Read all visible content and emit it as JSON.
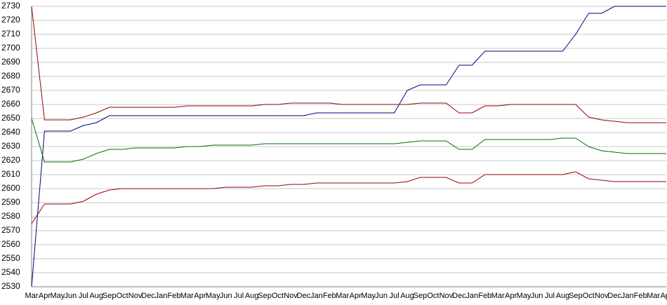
{
  "chart_data": {
    "type": "line",
    "categories": [
      "Mar",
      "Apr",
      "May",
      "Jun",
      "Jul",
      "Aug",
      "Sep",
      "Oct",
      "Nov",
      "Dec",
      "Jan",
      "Feb",
      "Mar",
      "Apr",
      "May",
      "Jun",
      "Jul",
      "Aug",
      "Sep",
      "Oct",
      "Nov",
      "Dec",
      "Jan",
      "Feb",
      "Mar",
      "Apr",
      "May",
      "Jun",
      "Jul",
      "Aug",
      "Sep",
      "Oct",
      "Nov",
      "Dec",
      "Jan",
      "Feb",
      "Mar",
      "Apr",
      "May",
      "Jun",
      "Jul",
      "Aug",
      "Sep",
      "Oct",
      "Nov",
      "Dec",
      "Jan",
      "Feb",
      "Mar",
      "Apr"
    ],
    "series": [
      {
        "color": "#000080",
        "values": [
          2530,
          2641,
          2641,
          2641,
          2645,
          2647,
          2652,
          2652,
          2652,
          2652,
          2652,
          2652,
          2652,
          2652,
          2652,
          2652,
          2652,
          2652,
          2652,
          2652,
          2652,
          2652,
          2654,
          2654,
          2654,
          2654,
          2654,
          2654,
          2654,
          2670,
          2674,
          2674,
          2674,
          2688,
          2688,
          2698,
          2698,
          2698,
          2698,
          2698,
          2698,
          2698,
          2710,
          2725,
          2725,
          2730,
          2730,
          2730,
          2730,
          2730
        ]
      },
      {
        "color": "#990000",
        "values": [
          2730,
          2649,
          2649,
          2649,
          2651,
          2654,
          2658,
          2658,
          2658,
          2658,
          2658,
          2658,
          2659,
          2659,
          2659,
          2659,
          2659,
          2659,
          2660,
          2660,
          2661,
          2661,
          2661,
          2661,
          2660,
          2660,
          2660,
          2660,
          2660,
          2660,
          2661,
          2661,
          2661,
          2654,
          2654,
          2659,
          2659,
          2660,
          2660,
          2660,
          2660,
          2660,
          2660,
          2651,
          2649,
          2648,
          2647,
          2647,
          2647,
          2647
        ]
      },
      {
        "color": "#007000",
        "values": [
          2650,
          2619,
          2619,
          2619,
          2621,
          2625,
          2628,
          2628,
          2629,
          2629,
          2629,
          2629,
          2630,
          2630,
          2631,
          2631,
          2631,
          2631,
          2632,
          2632,
          2632,
          2632,
          2632,
          2632,
          2632,
          2632,
          2632,
          2632,
          2632,
          2633,
          2634,
          2634,
          2634,
          2628,
          2628,
          2635,
          2635,
          2635,
          2635,
          2635,
          2635,
          2636,
          2636,
          2630,
          2627,
          2626,
          2625,
          2625,
          2625,
          2625
        ]
      },
      {
        "color": "#990000",
        "values": [
          2575,
          2589,
          2589,
          2589,
          2591,
          2596,
          2599,
          2600,
          2600,
          2600,
          2600,
          2600,
          2600,
          2600,
          2600,
          2601,
          2601,
          2601,
          2602,
          2602,
          2603,
          2603,
          2604,
          2604,
          2604,
          2604,
          2604,
          2604,
          2604,
          2605,
          2608,
          2608,
          2608,
          2604,
          2604,
          2610,
          2610,
          2610,
          2610,
          2610,
          2610,
          2610,
          2612,
          2607,
          2606,
          2605,
          2605,
          2605,
          2605,
          2605
        ]
      }
    ],
    "ylim": [
      2530,
      2730
    ],
    "yticks": [
      2530,
      2540,
      2550,
      2560,
      2570,
      2580,
      2590,
      2600,
      2610,
      2620,
      2630,
      2640,
      2650,
      2660,
      2670,
      2680,
      2690,
      2700,
      2710,
      2720,
      2730
    ],
    "grid": true
  }
}
